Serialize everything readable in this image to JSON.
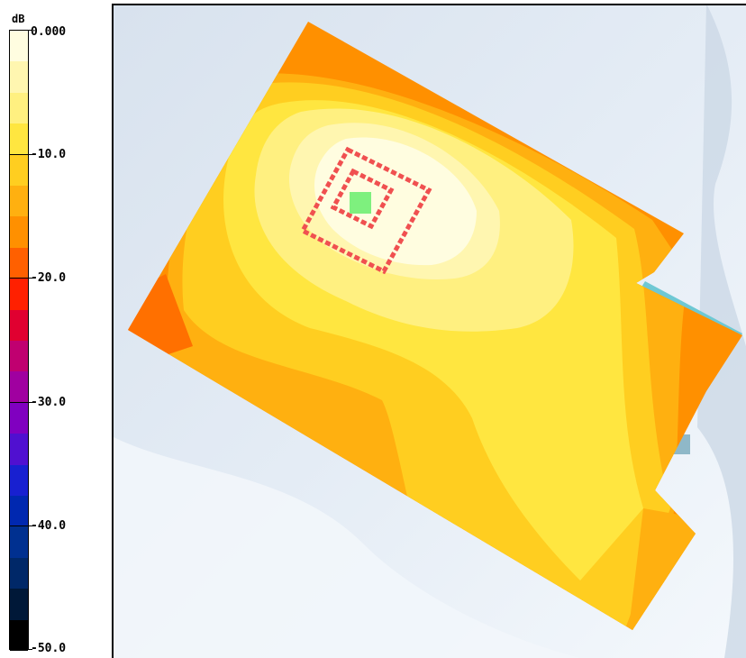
{
  "colorbar": {
    "unit": "dB",
    "tick_labels": [
      "0.000",
      "-10.0",
      "-20.0",
      "-30.0",
      "-40.0",
      "-50.0"
    ],
    "tick_values": [
      0,
      -10,
      -20,
      -30,
      -40,
      -50
    ],
    "range": [
      -50,
      0
    ],
    "levels": [
      {
        "from": 0,
        "to": -2.5,
        "color": "#fffde0"
      },
      {
        "from": -2.5,
        "to": -5,
        "color": "#fff6b0"
      },
      {
        "from": -5,
        "to": -7.5,
        "color": "#fff080"
      },
      {
        "from": -7.5,
        "to": -10,
        "color": "#ffe640"
      },
      {
        "from": -10,
        "to": -12.5,
        "color": "#ffce20"
      },
      {
        "from": -12.5,
        "to": -15,
        "color": "#ffb010"
      },
      {
        "from": -15,
        "to": -17.5,
        "color": "#ff9000"
      },
      {
        "from": -17.5,
        "to": -20,
        "color": "#ff6000"
      },
      {
        "from": -20,
        "to": -22.5,
        "color": "#ff2000"
      },
      {
        "from": -22.5,
        "to": -25,
        "color": "#e00030"
      },
      {
        "from": -25,
        "to": -27.5,
        "color": "#c00070"
      },
      {
        "from": -27.5,
        "to": -30,
        "color": "#a000a0"
      },
      {
        "from": -30,
        "to": -32.5,
        "color": "#8000c0"
      },
      {
        "from": -32.5,
        "to": -35,
        "color": "#5010d0"
      },
      {
        "from": -35,
        "to": -37.5,
        "color": "#1820d0"
      },
      {
        "from": -37.5,
        "to": -40,
        "color": "#0028b0"
      },
      {
        "from": -40,
        "to": -42.5,
        "color": "#003090"
      },
      {
        "from": -42.5,
        "to": -45,
        "color": "#002868"
      },
      {
        "from": -45,
        "to": -47.5,
        "color": "#001838"
      },
      {
        "from": -47.5,
        "to": -50,
        "color": "#000000"
      }
    ]
  },
  "map": {
    "background_color": "#dde6f0",
    "slab_color": "#6ec8d4",
    "peak_marker_color": "#7ef07e",
    "contour_marker_color": "#f05050"
  }
}
